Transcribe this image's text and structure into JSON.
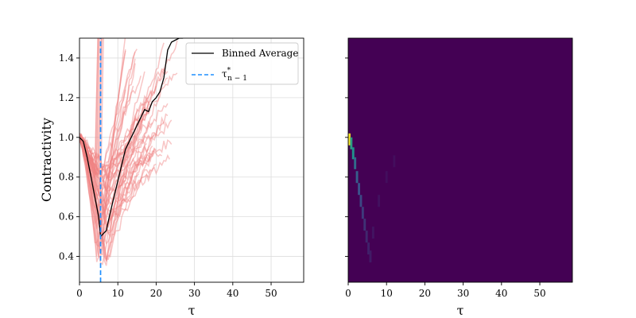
{
  "chart_data": [
    {
      "type": "line",
      "xlabel": "τ",
      "ylabel": "Contractivity",
      "xlim": [
        0,
        58.5
      ],
      "ylim": [
        0.27,
        1.5
      ],
      "xticks": [
        0,
        10,
        20,
        30,
        40,
        50
      ],
      "yticks": [
        0.4,
        0.6,
        0.8,
        1.0,
        1.2,
        1.4
      ],
      "grid": true,
      "legend_position": "top-right",
      "colors": {
        "trajectories": "#f08080",
        "average": "#000000",
        "vline": "#1f8fff"
      },
      "series": [
        {
          "name": "Binned Average",
          "x": [
            0,
            1,
            2,
            3,
            4,
            5,
            5.5,
            6,
            7,
            8,
            9,
            10,
            11,
            12,
            13,
            14,
            15,
            16,
            17,
            18,
            19,
            20,
            21,
            22,
            23,
            24,
            25,
            26,
            27
          ],
          "y": [
            1.0,
            0.98,
            0.9,
            0.8,
            0.7,
            0.6,
            0.5,
            0.51,
            0.53,
            0.62,
            0.7,
            0.78,
            0.86,
            0.94,
            0.98,
            1.02,
            1.06,
            1.1,
            1.14,
            1.13,
            1.18,
            1.2,
            1.23,
            1.3,
            1.44,
            1.48,
            1.49,
            1.5,
            1.5
          ]
        },
        {
          "name": "τ*n−1",
          "x": [
            5.5,
            5.5
          ],
          "y": [
            0.27,
            1.5
          ]
        }
      ],
      "legend": {
        "average_label": "Binned Average",
        "vline_base": "τ",
        "vline_sup": "*",
        "vline_sub": "n − 1"
      }
    },
    {
      "type": "heatmap",
      "xlabel": "τ",
      "ylabel": "",
      "xlim": [
        0,
        58.5
      ],
      "ylim": [
        0.27,
        1.5
      ],
      "xticks": [
        0,
        10,
        20,
        30,
        40,
        50
      ],
      "colormap": "viridis",
      "background_color": "#440154",
      "hot_cells": [
        {
          "x": 0.3,
          "y": 0.99,
          "intensity": 1.0
        },
        {
          "x": 0.8,
          "y": 0.97,
          "intensity": 0.55
        },
        {
          "x": 1.3,
          "y": 0.92,
          "intensity": 0.5
        },
        {
          "x": 1.8,
          "y": 0.87,
          "intensity": 0.35
        },
        {
          "x": 2.3,
          "y": 0.8,
          "intensity": 0.3
        },
        {
          "x": 2.8,
          "y": 0.74,
          "intensity": 0.25
        },
        {
          "x": 3.3,
          "y": 0.68,
          "intensity": 0.22
        },
        {
          "x": 3.8,
          "y": 0.62,
          "intensity": 0.18
        },
        {
          "x": 4.3,
          "y": 0.56,
          "intensity": 0.15
        },
        {
          "x": 4.8,
          "y": 0.5,
          "intensity": 0.12
        },
        {
          "x": 5.3,
          "y": 0.44,
          "intensity": 0.1
        },
        {
          "x": 5.8,
          "y": 0.4,
          "intensity": 0.08
        },
        {
          "x": 6.5,
          "y": 0.52,
          "intensity": 0.06
        },
        {
          "x": 8.0,
          "y": 0.68,
          "intensity": 0.05
        },
        {
          "x": 10.0,
          "y": 0.8,
          "intensity": 0.04
        },
        {
          "x": 12.0,
          "y": 0.88,
          "intensity": 0.04
        }
      ]
    }
  ]
}
